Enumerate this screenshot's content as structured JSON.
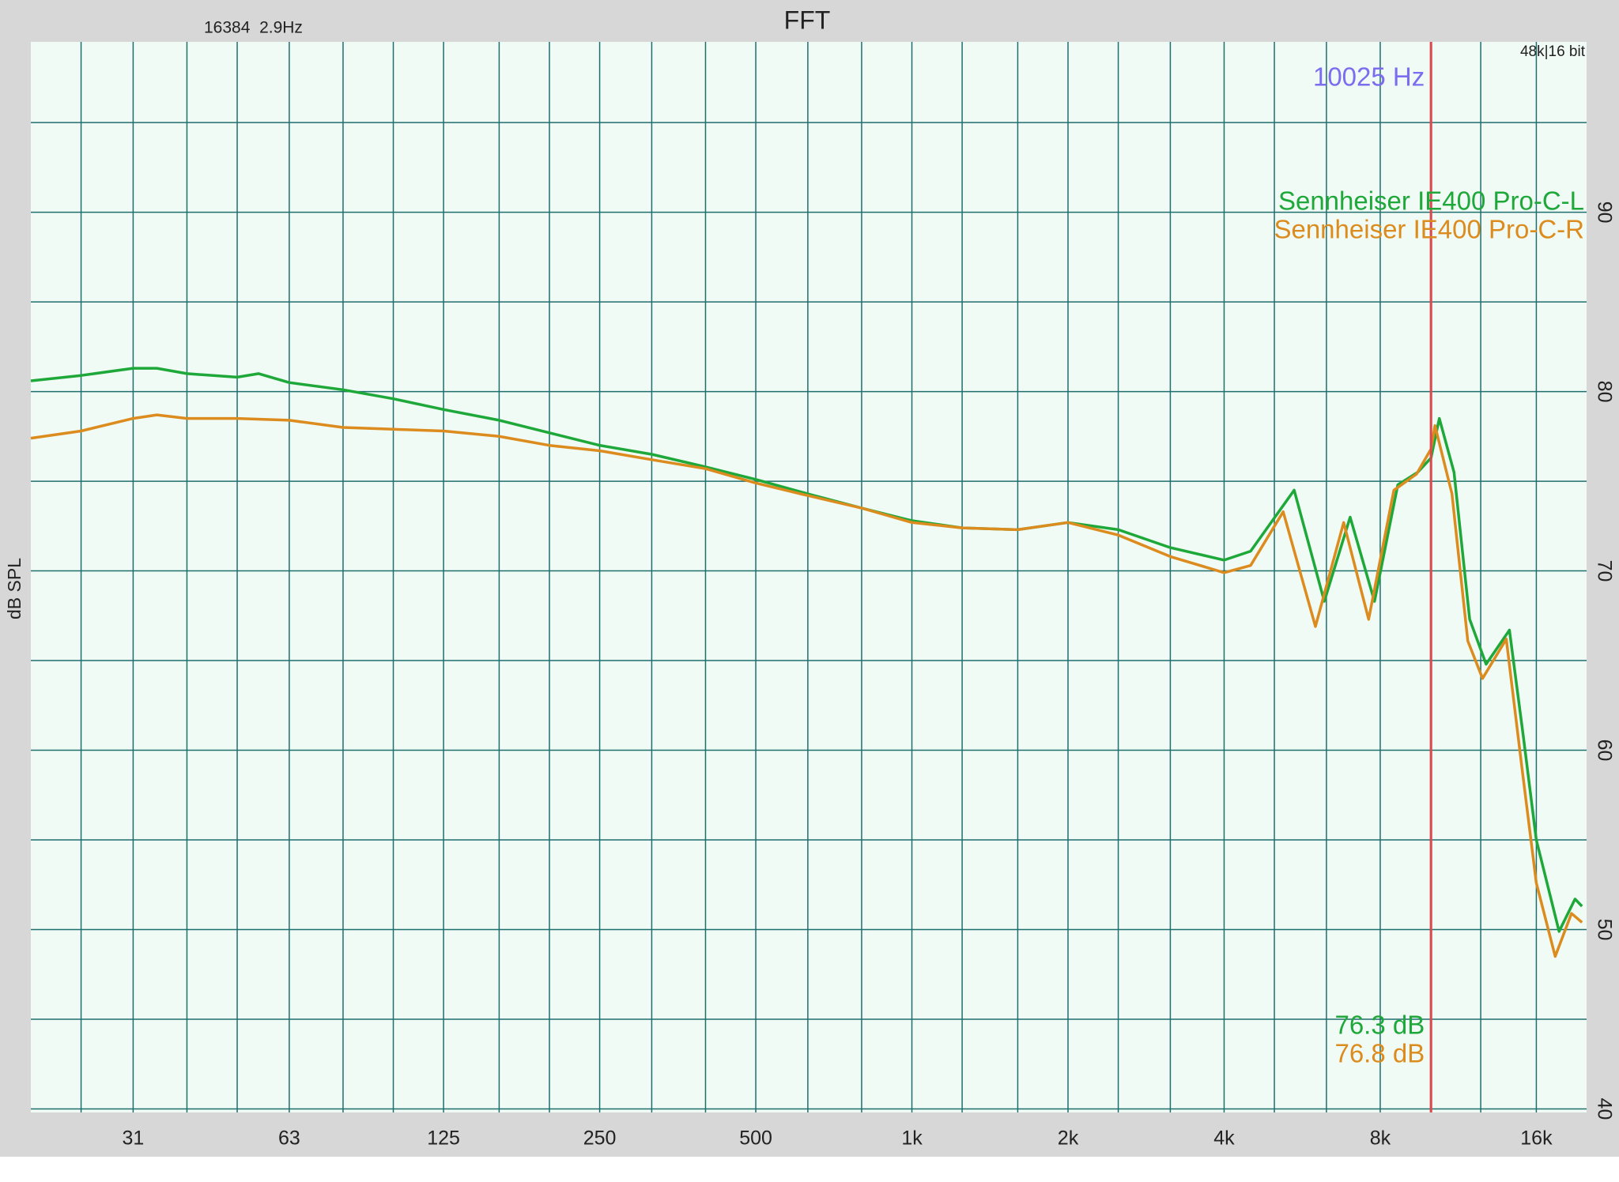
{
  "chart_data": {
    "type": "line",
    "title": "FFT",
    "info_left": "16384  2.9Hz",
    "info_right": "48k|16 bit",
    "y_label": "dB SPL",
    "x_log": true,
    "grid": true,
    "legend_position": "upper right",
    "xlim": [
      20,
      20000
    ],
    "ylim": [
      39.8,
      99.5
    ],
    "xticks": [
      {
        "value": 31.5,
        "label": "31"
      },
      63,
      125,
      250,
      500,
      {
        "value": 1000,
        "label": "1k"
      },
      {
        "value": 2000,
        "label": "2k"
      },
      {
        "value": 4000,
        "label": "4k"
      },
      {
        "value": 8000,
        "label": "8k"
      },
      {
        "value": 16000,
        "label": "16k"
      }
    ],
    "xminor": [
      25,
      40,
      50,
      80,
      100,
      160,
      200,
      315,
      400,
      630,
      800,
      1250,
      1600,
      2500,
      3150,
      5000,
      6300,
      10000,
      12500
    ],
    "yticks": [
      40,
      50,
      60,
      70,
      80,
      90
    ],
    "yminor": [
      45,
      55,
      65,
      75,
      85,
      95
    ],
    "cursor": {
      "value": 10025,
      "label": "10025 Hz",
      "color": "#e0474c",
      "label_color": "#7b6cf0"
    },
    "readouts": [
      {
        "value": 76.3,
        "label": "76.3 dB"
      },
      {
        "value": 76.8,
        "label": "76.8 dB"
      }
    ],
    "series": [
      {
        "name": "Sennheiser IE400 Pro-C-L",
        "color": "#1fa83a",
        "x": [
          20,
          25,
          31.5,
          35,
          40,
          50,
          55,
          63,
          80,
          100,
          125,
          160,
          200,
          250,
          315,
          400,
          500,
          630,
          800,
          1000,
          1250,
          1600,
          2000,
          2500,
          3150,
          4000,
          4500,
          5460,
          6240,
          7000,
          7800,
          8650,
          9450,
          10025,
          10400,
          11100,
          11900,
          12800,
          14200,
          15100,
          16000,
          17700,
          19000,
          19600
        ],
        "values": [
          80.6,
          80.9,
          81.3,
          81.3,
          81.0,
          80.8,
          81.0,
          80.5,
          80.1,
          79.6,
          79.0,
          78.4,
          77.7,
          77.0,
          76.5,
          75.8,
          75.1,
          74.3,
          73.5,
          72.8,
          72.4,
          72.3,
          72.7,
          72.3,
          71.3,
          70.6,
          71.1,
          74.5,
          68.3,
          73.0,
          68.3,
          74.8,
          75.5,
          76.3,
          78.5,
          75.5,
          67.3,
          64.8,
          66.7,
          60.8,
          55.0,
          49.9,
          51.7,
          51.3
        ]
      },
      {
        "name": "Sennheiser IE400 Pro-C-R",
        "color": "#dc8c1e",
        "x": [
          20,
          25,
          31.5,
          35,
          40,
          50,
          63,
          80,
          100,
          125,
          160,
          200,
          250,
          315,
          400,
          500,
          630,
          800,
          1000,
          1250,
          1600,
          2000,
          2500,
          3150,
          4000,
          4500,
          5200,
          6000,
          6800,
          7600,
          8500,
          9400,
          10025,
          10200,
          11000,
          11800,
          12600,
          14000,
          15000,
          16000,
          17400,
          18700,
          19600
        ],
        "values": [
          77.4,
          77.8,
          78.5,
          78.7,
          78.5,
          78.5,
          78.4,
          78.0,
          77.9,
          77.8,
          77.5,
          77.0,
          76.7,
          76.2,
          75.7,
          74.9,
          74.2,
          73.5,
          72.7,
          72.4,
          72.3,
          72.7,
          72.0,
          70.8,
          69.9,
          70.3,
          73.3,
          66.9,
          72.7,
          67.3,
          74.5,
          75.4,
          76.8,
          78.1,
          74.3,
          66.1,
          64.0,
          66.2,
          59.1,
          52.6,
          48.5,
          50.9,
          50.4
        ]
      }
    ]
  }
}
